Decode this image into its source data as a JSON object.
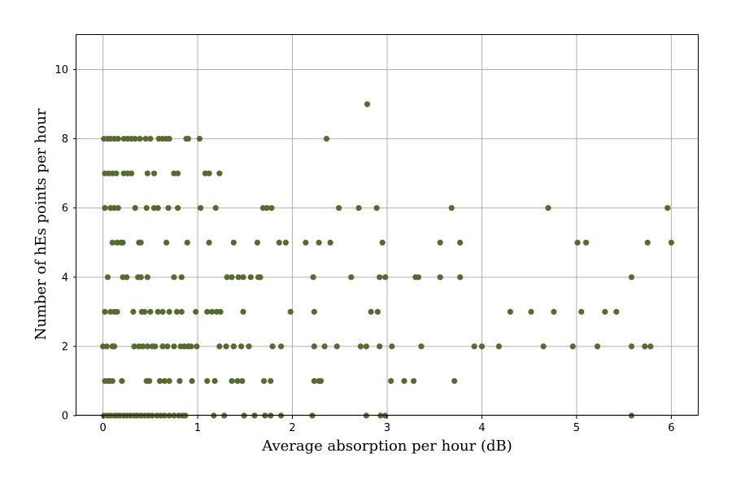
{
  "chart_data": {
    "type": "scatter",
    "title": "",
    "xlabel": "Average absorption per hour (dB)",
    "ylabel": "Number of hEs points per hour",
    "xlim": [
      -0.28,
      6.28
    ],
    "ylim": [
      0,
      11
    ],
    "xticks": [
      0,
      1,
      2,
      3,
      4,
      5,
      6
    ],
    "yticks": [
      0,
      2,
      4,
      6,
      8,
      10
    ],
    "grid": true,
    "legend": "none",
    "marker_color": "#556b2f",
    "series": [
      {
        "x": [
          0.01,
          0.05,
          0.08,
          0.12,
          0.15,
          0.18,
          0.22,
          0.25,
          0.29,
          0.33,
          0.36,
          0.4,
          0.44,
          0.48,
          0.52,
          0.57,
          0.61,
          0.65,
          0.7,
          0.75,
          0.8,
          0.84,
          0.87,
          1.17,
          1.28,
          1.49,
          1.6,
          1.71,
          1.77,
          1.88,
          2.21,
          2.78,
          2.93,
          2.98,
          5.58,
          0.02,
          0.05,
          0.07,
          0.1,
          0.2,
          0.46,
          0.49,
          0.6,
          0.65,
          0.7,
          0.81,
          0.94,
          1.1,
          1.18,
          1.36,
          1.42,
          1.47,
          1.7,
          1.77,
          2.23,
          2.28,
          2.3,
          3.04,
          3.18,
          3.28,
          3.71,
          0.0,
          0.04,
          0.1,
          0.12,
          0.33,
          0.38,
          0.42,
          0.47,
          0.52,
          0.55,
          0.63,
          0.68,
          0.75,
          0.82,
          0.86,
          0.9,
          0.93,
          0.99,
          1.23,
          1.3,
          1.38,
          1.46,
          1.54,
          1.79,
          1.88,
          2.23,
          2.34,
          2.47,
          2.72,
          2.78,
          2.92,
          3.05,
          3.36,
          3.92,
          4.0,
          4.18,
          4.65,
          4.96,
          5.22,
          5.58,
          5.72,
          5.78,
          0.02,
          0.08,
          0.12,
          0.15,
          0.32,
          0.41,
          0.44,
          0.5,
          0.58,
          0.63,
          0.7,
          0.78,
          0.83,
          0.98,
          1.1,
          1.15,
          1.2,
          1.24,
          1.48,
          1.98,
          2.23,
          2.83,
          2.9,
          4.3,
          4.52,
          4.76,
          5.05,
          5.3,
          5.42,
          0.05,
          0.21,
          0.25,
          0.37,
          0.4,
          0.47,
          0.75,
          0.83,
          1.31,
          1.36,
          1.43,
          1.48,
          1.56,
          1.64,
          1.66,
          2.22,
          2.62,
          2.92,
          2.98,
          3.3,
          3.33,
          3.56,
          3.77,
          5.58,
          0.1,
          0.15,
          0.19,
          0.21,
          0.38,
          0.4,
          0.67,
          0.89,
          1.12,
          1.38,
          1.63,
          1.86,
          1.93,
          2.14,
          2.28,
          2.4,
          2.95,
          3.56,
          3.77,
          5.01,
          5.1,
          5.75,
          6.0,
          0.02,
          0.08,
          0.12,
          0.16,
          0.34,
          0.46,
          0.54,
          0.58,
          0.69,
          0.79,
          1.03,
          1.19,
          1.69,
          1.73,
          1.78,
          2.49,
          2.7,
          2.89,
          3.68,
          4.7,
          5.96,
          0.02,
          0.06,
          0.1,
          0.14,
          0.22,
          0.26,
          0.3,
          0.47,
          0.54,
          0.75,
          0.79,
          1.08,
          1.12,
          1.23,
          0.01,
          0.05,
          0.08,
          0.12,
          0.16,
          0.22,
          0.26,
          0.3,
          0.34,
          0.39,
          0.45,
          0.5,
          0.59,
          0.63,
          0.67,
          0.7,
          0.88,
          0.9,
          1.02,
          2.36,
          2.79
        ],
        "y": [
          0,
          0,
          0,
          0,
          0,
          0,
          0,
          0,
          0,
          0,
          0,
          0,
          0,
          0,
          0,
          0,
          0,
          0,
          0,
          0,
          0,
          0,
          0,
          0,
          0,
          0,
          0,
          0,
          0,
          0,
          0,
          0,
          0,
          0,
          0,
          1,
          1,
          1,
          1,
          1,
          1,
          1,
          1,
          1,
          1,
          1,
          1,
          1,
          1,
          1,
          1,
          1,
          1,
          1,
          1,
          1,
          1,
          1,
          1,
          1,
          1,
          2,
          2,
          2,
          2,
          2,
          2,
          2,
          2,
          2,
          2,
          2,
          2,
          2,
          2,
          2,
          2,
          2,
          2,
          2,
          2,
          2,
          2,
          2,
          2,
          2,
          2,
          2,
          2,
          2,
          2,
          2,
          2,
          2,
          2,
          2,
          2,
          2,
          2,
          2,
          2,
          2,
          2,
          3,
          3,
          3,
          3,
          3,
          3,
          3,
          3,
          3,
          3,
          3,
          3,
          3,
          3,
          3,
          3,
          3,
          3,
          3,
          3,
          3,
          3,
          3,
          3,
          3,
          3,
          3,
          3,
          3,
          4,
          4,
          4,
          4,
          4,
          4,
          4,
          4,
          4,
          4,
          4,
          4,
          4,
          4,
          4,
          4,
          4,
          4,
          4,
          4,
          4,
          4,
          4,
          4,
          5,
          5,
          5,
          5,
          5,
          5,
          5,
          5,
          5,
          5,
          5,
          5,
          5,
          5,
          5,
          5,
          5,
          5,
          5,
          5,
          5,
          5,
          5,
          6,
          6,
          6,
          6,
          6,
          6,
          6,
          6,
          6,
          6,
          6,
          6,
          6,
          6,
          6,
          6,
          6,
          6,
          6,
          6,
          6,
          7,
          7,
          7,
          7,
          7,
          7,
          7,
          7,
          7,
          7,
          7,
          7,
          7,
          7,
          8,
          8,
          8,
          8,
          8,
          8,
          8,
          8,
          8,
          8,
          8,
          8,
          8,
          8,
          8,
          8,
          8,
          8,
          8,
          8,
          9
        ]
      }
    ]
  }
}
